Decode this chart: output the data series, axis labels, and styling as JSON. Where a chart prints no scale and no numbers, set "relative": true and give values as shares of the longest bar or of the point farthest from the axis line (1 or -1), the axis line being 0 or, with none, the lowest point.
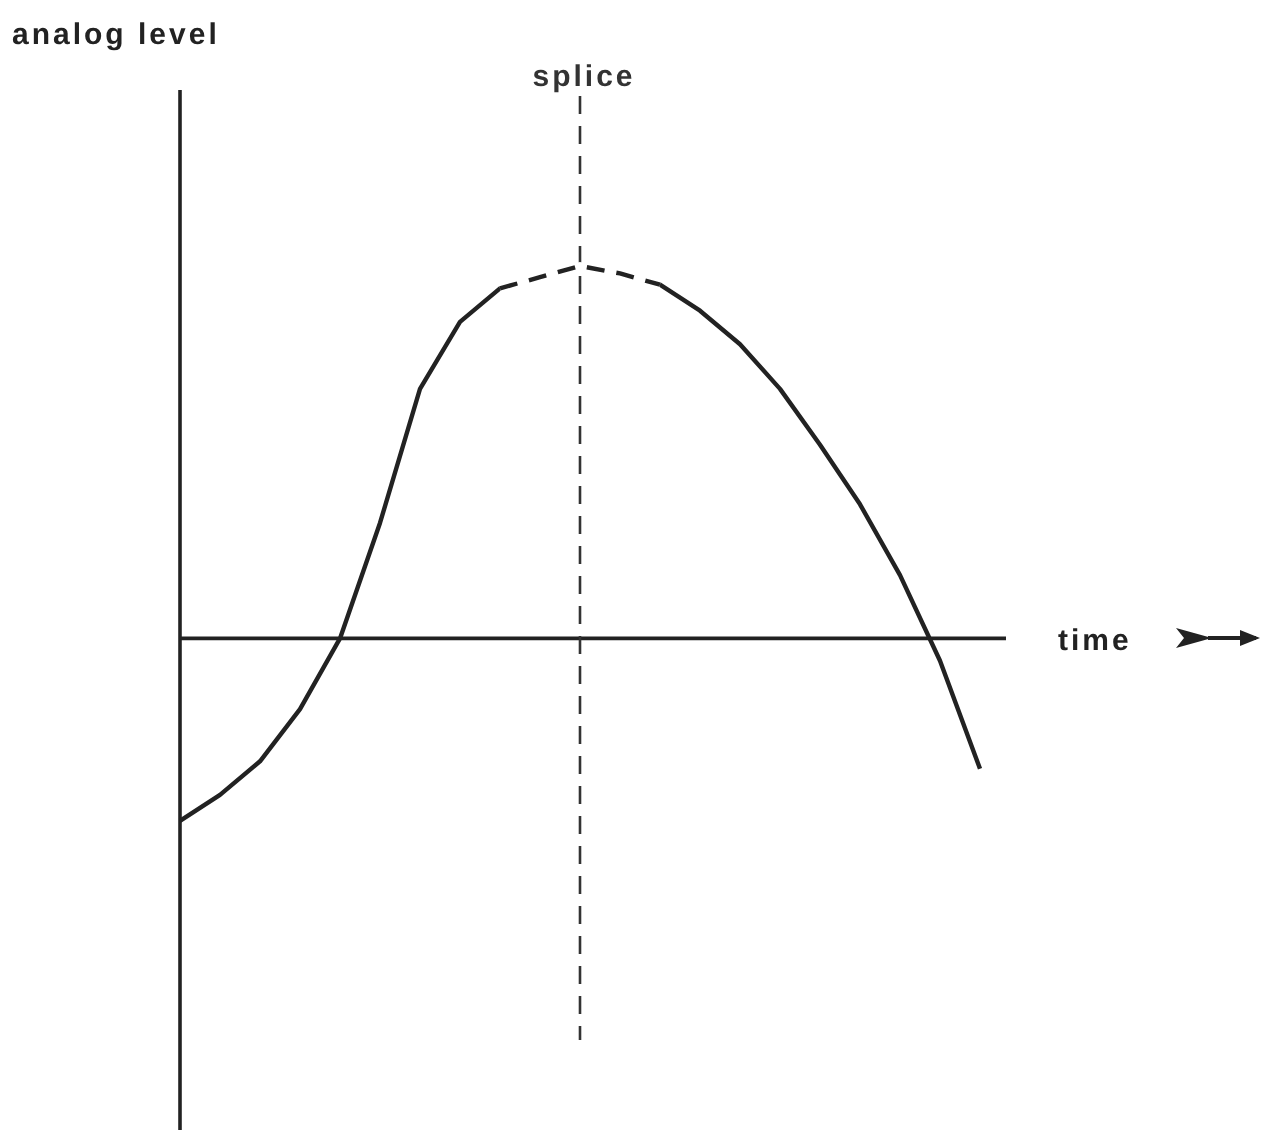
{
  "chart_data": {
    "type": "line",
    "xlabel": "time",
    "relative": true,
    "annotations": [
      "analog level",
      "splice"
    ],
    "categories": [
      null,
      null,
      null,
      null,
      null,
      null,
      null,
      null,
      null,
      null,
      null,
      null,
      null,
      null,
      null,
      null,
      null,
      null,
      null,
      null,
      null
    ],
    "series": [
      {
        "color": "#222222",
        "line_style": "solid",
        "values": [
          -0.49,
          -0.42,
          -0.33,
          -0.19,
          0.0,
          0.31,
          0.67,
          0.85,
          0.94,
          0.97,
          1,
          0.98,
          0.95,
          0.88,
          0.79,
          0.67,
          0.52,
          0.36,
          0.17,
          -0.06,
          -0.35
        ]
      },
      {
        "color": "#222222",
        "line_style": "dashed",
        "values": [
          null,
          null,
          null,
          null,
          null,
          null,
          null,
          null,
          0.94,
          0.97,
          1,
          0.98,
          0.95,
          null,
          null,
          null,
          null,
          null,
          null,
          null,
          null
        ]
      }
    ]
  }
}
